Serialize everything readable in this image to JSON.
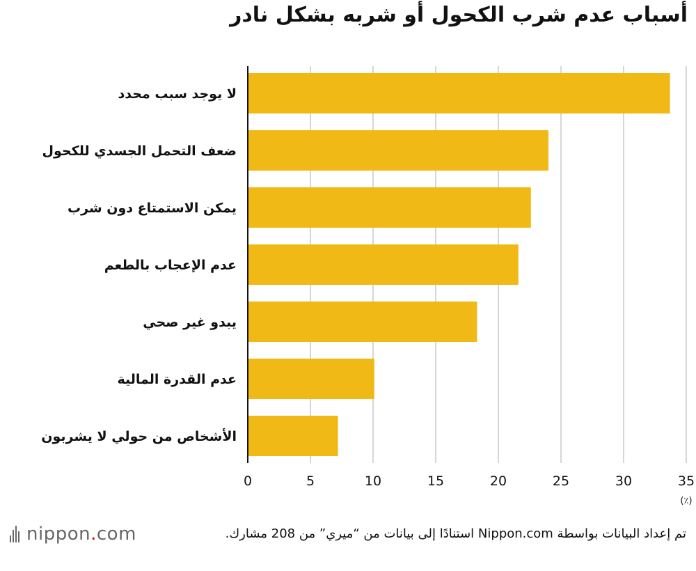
{
  "title": "أسباب عدم شرب الكحول أو شربه بشكل نادر",
  "source_text": "تم إعداد البيانات بواسطة Nippon.com استنادًا إلى بيانات من “ميري” من 208 مشارك.",
  "logo": {
    "pre": "nippon",
    "dot": ".",
    "post": "com"
  },
  "colors": {
    "bar": "#f0b915",
    "grid": "#c8c8c8",
    "axis": "#111111"
  },
  "chart_data": {
    "type": "bar",
    "orientation": "horizontal",
    "categories": [
      "لا يوجد سبب محدد",
      "ضعف التحمل الجسدي للكحول",
      "يمكن الاستمتاع دون شرب",
      "عدم الإعجاب بالطعم",
      "يبدو غير صحي",
      "عدم القدرة المالية",
      "الأشخاص من حولي لا يشربون"
    ],
    "values": [
      33.7,
      24.0,
      22.6,
      21.6,
      18.3,
      10.1,
      7.2
    ],
    "xlim": [
      0,
      35
    ],
    "xticks": [
      "0",
      "5",
      "10",
      "15",
      "20",
      "25",
      "30",
      "35"
    ],
    "unit": "(٪)",
    "grid": true
  }
}
